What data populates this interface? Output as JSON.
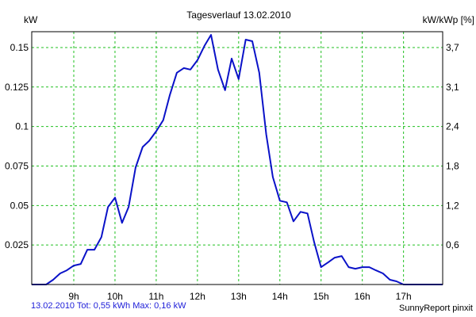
{
  "chart_data": {
    "type": "line",
    "title": "Tagesverlauf 13.02.2010",
    "ylabel_left": "kW",
    "ylabel_right": "kW/kWp [%]",
    "x_tick_labels": [
      "9h",
      "10h",
      "11h",
      "12h",
      "13h",
      "14h",
      "15h",
      "16h",
      "17h"
    ],
    "x_ticks": [
      9,
      10,
      11,
      12,
      13,
      14,
      15,
      16,
      17
    ],
    "xlim": [
      7.98,
      17.95
    ],
    "y_left_ticks": [
      0.025,
      0.05,
      0.075,
      0.1,
      0.125,
      0.15
    ],
    "y_left_tick_labels": [
      "0.025",
      "0.05",
      "0.075",
      "0.1",
      "0.125",
      "0.15"
    ],
    "ylim": [
      0,
      0.16
    ],
    "y_right_ticks": [
      0.6,
      1.2,
      1.8,
      2.4,
      3.1,
      3.7
    ],
    "y_right_tick_labels": [
      "0,6",
      "1,2",
      "1,8",
      "2,4",
      "3,1",
      "3,7"
    ],
    "grid": true,
    "colors": {
      "line": "#0a12c8",
      "grid": "#20c020",
      "background": "#ffffff"
    },
    "series": [
      {
        "x": [
          7.98,
          8.33,
          8.5,
          8.67,
          8.83,
          9.0,
          9.17,
          9.33,
          9.5,
          9.67,
          9.83,
          10.0,
          10.17,
          10.33,
          10.5,
          10.67,
          10.83,
          11.0,
          11.17,
          11.33,
          11.5,
          11.67,
          11.83,
          12.0,
          12.17,
          12.33,
          12.5,
          12.67,
          12.83,
          13.0,
          13.17,
          13.33,
          13.5,
          13.67,
          13.83,
          14.0,
          14.17,
          14.33,
          14.5,
          14.67,
          14.83,
          15.0,
          15.17,
          15.33,
          15.5,
          15.67,
          15.83,
          16.0,
          16.17,
          16.33,
          16.5,
          16.67,
          16.83,
          17.0,
          17.17,
          17.33,
          17.5,
          17.67,
          17.95
        ],
        "y": [
          0.0,
          0.0,
          0.003,
          0.007,
          0.009,
          0.012,
          0.013,
          0.022,
          0.022,
          0.03,
          0.049,
          0.055,
          0.039,
          0.049,
          0.074,
          0.087,
          0.091,
          0.097,
          0.104,
          0.12,
          0.134,
          0.137,
          0.136,
          0.142,
          0.151,
          0.158,
          0.136,
          0.123,
          0.143,
          0.13,
          0.155,
          0.154,
          0.134,
          0.095,
          0.068,
          0.053,
          0.052,
          0.04,
          0.046,
          0.045,
          0.027,
          0.011,
          0.014,
          0.017,
          0.018,
          0.011,
          0.01,
          0.011,
          0.011,
          0.009,
          0.007,
          0.003,
          0.002,
          0.0,
          0.0,
          0.0,
          0.0,
          0.0,
          0.0
        ]
      }
    ]
  },
  "footer": {
    "left": "13.02.2010 Tot: 0,55 kWh Max: 0,16 kW",
    "right": "SunnyReport pinxit"
  }
}
